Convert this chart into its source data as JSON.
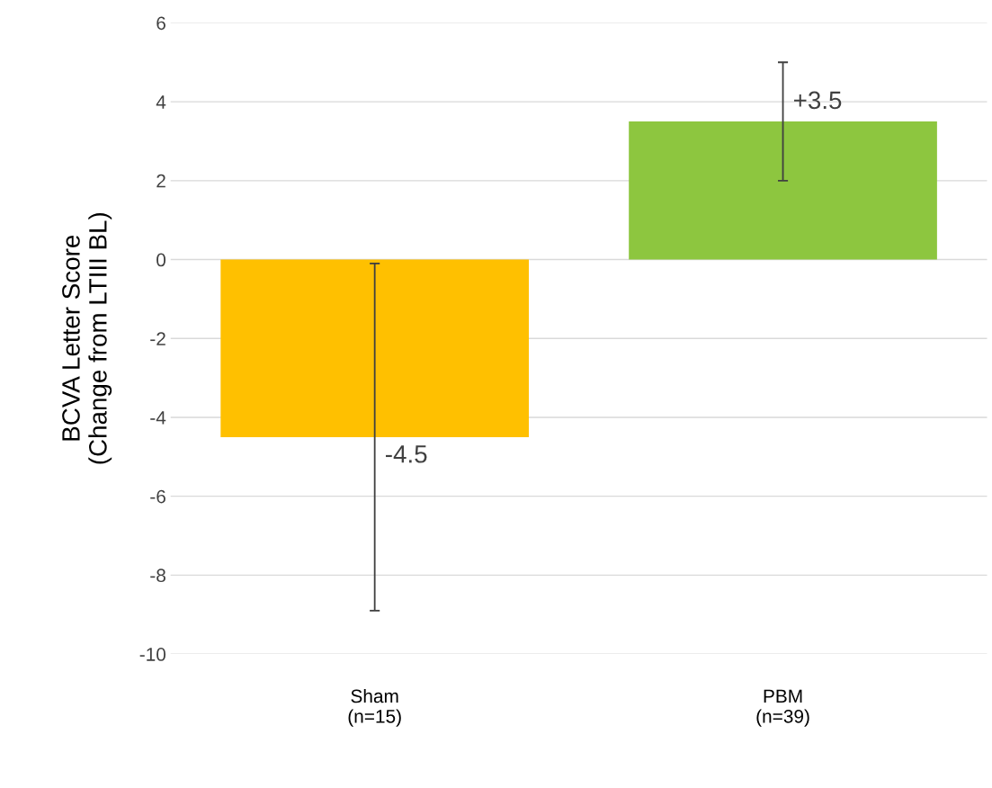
{
  "chart_data": {
    "type": "bar",
    "ylabel": "BCVA Letter Score\n(Change from LTIII BL)",
    "categories": [
      "Sham\n(n=15)",
      "PBM\n(n=39)"
    ],
    "values": [
      -4.5,
      3.5
    ],
    "colors": [
      "#ffc000",
      "#8dc63f"
    ],
    "errors": [
      [
        -8.9,
        -0.1
      ],
      [
        2.0,
        5.0
      ]
    ],
    "value_labels": [
      "-4.5",
      "+3.5"
    ],
    "ylim": [
      -10,
      6
    ],
    "yticks": [
      -10,
      -8,
      -6,
      -4,
      -2,
      0,
      2,
      4,
      6
    ],
    "grid": "y"
  }
}
